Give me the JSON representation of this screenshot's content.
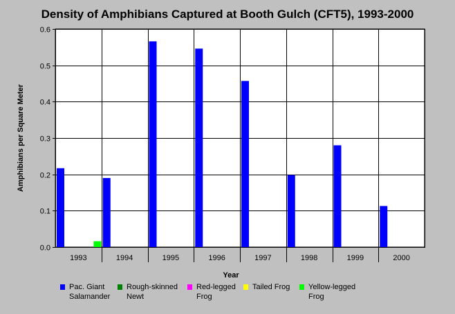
{
  "chart_data": {
    "type": "bar",
    "title": "Density of Amphibians Captured at Booth Gulch (CFT5), 1993-2000",
    "xlabel": "Year",
    "ylabel": "Amphibians per Square Meter",
    "categories": [
      "1993",
      "1994",
      "1995",
      "1996",
      "1997",
      "1998",
      "1999",
      "2000"
    ],
    "ylim": [
      0,
      0.6
    ],
    "yticks": [
      "0.0",
      "0.1",
      "0.2",
      "0.3",
      "0.4",
      "0.5",
      "0.6"
    ],
    "grid": true,
    "legend_position": "bottom",
    "series": [
      {
        "name": "Pac. Giant Salamander",
        "color": "#0000ff",
        "values": [
          0.217,
          0.19,
          0.566,
          0.546,
          0.457,
          0.198,
          0.28,
          0.113
        ]
      },
      {
        "name": "Rough-skinned Newt",
        "color": "#008000",
        "values": [
          0,
          0,
          0,
          0,
          0,
          0,
          0,
          0
        ]
      },
      {
        "name": "Red-legged Frog",
        "color": "#ff00ff",
        "values": [
          0,
          0,
          0,
          0,
          0,
          0,
          0,
          0
        ]
      },
      {
        "name": "Tailed Frog",
        "color": "#ffff00",
        "values": [
          0,
          0,
          0,
          0,
          0,
          0,
          0,
          0
        ]
      },
      {
        "name": "Yellow-legged Frog",
        "color": "#00ff00",
        "values": [
          0.016,
          0,
          0,
          0,
          0,
          0,
          0,
          0
        ]
      }
    ]
  }
}
